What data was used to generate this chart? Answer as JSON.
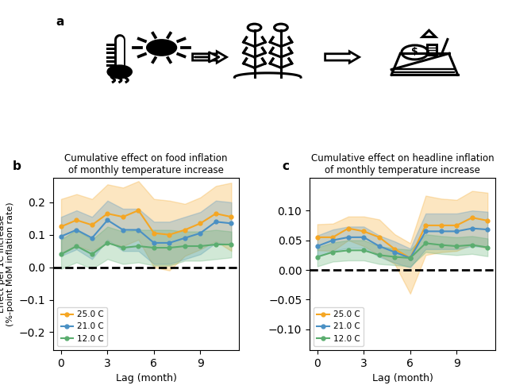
{
  "panel_b_title": "Cumulative effect on food inflation\nof monthly temperature increase",
  "panel_c_title": "Cumulative effect on headline inflation\nof monthly temperature increase",
  "xlabel": "Lag (month)",
  "ylabel": "Effect per 1C increase\n(%-point MoM inflation rate)",
  "lags": [
    0,
    1,
    2,
    3,
    4,
    5,
    6,
    7,
    8,
    9,
    10,
    11
  ],
  "food": {
    "orange_mean": [
      0.125,
      0.145,
      0.13,
      0.165,
      0.155,
      0.175,
      0.105,
      0.1,
      0.115,
      0.135,
      0.165,
      0.155
    ],
    "orange_upper": [
      0.21,
      0.225,
      0.21,
      0.255,
      0.245,
      0.265,
      0.21,
      0.205,
      0.195,
      0.215,
      0.25,
      0.26
    ],
    "orange_lower": [
      0.04,
      0.065,
      0.05,
      0.075,
      0.065,
      0.085,
      0.0,
      -0.01,
      0.035,
      0.055,
      0.08,
      0.05
    ],
    "blue_mean": [
      0.095,
      0.115,
      0.09,
      0.145,
      0.115,
      0.115,
      0.075,
      0.075,
      0.09,
      0.105,
      0.14,
      0.135
    ],
    "blue_upper": [
      0.155,
      0.175,
      0.155,
      0.205,
      0.18,
      0.18,
      0.14,
      0.14,
      0.155,
      0.17,
      0.205,
      0.2
    ],
    "blue_lower": [
      0.035,
      0.055,
      0.025,
      0.085,
      0.05,
      0.05,
      0.01,
      0.01,
      0.025,
      0.04,
      0.075,
      0.07
    ],
    "green_mean": [
      0.04,
      0.065,
      0.04,
      0.075,
      0.06,
      0.065,
      0.06,
      0.06,
      0.065,
      0.065,
      0.07,
      0.07
    ],
    "green_upper": [
      0.085,
      0.115,
      0.085,
      0.125,
      0.11,
      0.115,
      0.115,
      0.115,
      0.11,
      0.11,
      0.115,
      0.11
    ],
    "green_lower": [
      -0.005,
      0.015,
      -0.005,
      0.025,
      0.01,
      0.015,
      0.005,
      0.005,
      0.02,
      0.02,
      0.025,
      0.03
    ]
  },
  "headline": {
    "orange_mean": [
      0.055,
      0.055,
      0.07,
      0.065,
      0.055,
      0.035,
      0.02,
      0.075,
      0.075,
      0.075,
      0.088,
      0.083
    ],
    "orange_upper": [
      0.077,
      0.078,
      0.09,
      0.09,
      0.085,
      0.06,
      0.045,
      0.125,
      0.12,
      0.118,
      0.133,
      0.13
    ],
    "orange_lower": [
      0.033,
      0.032,
      0.05,
      0.04,
      0.025,
      0.01,
      -0.04,
      0.025,
      0.03,
      0.032,
      0.043,
      0.036
    ],
    "blue_mean": [
      0.04,
      0.05,
      0.055,
      0.055,
      0.04,
      0.03,
      0.02,
      0.065,
      0.065,
      0.065,
      0.07,
      0.068
    ],
    "blue_upper": [
      0.058,
      0.068,
      0.073,
      0.073,
      0.058,
      0.048,
      0.036,
      0.095,
      0.095,
      0.095,
      0.1,
      0.098
    ],
    "blue_lower": [
      0.022,
      0.032,
      0.037,
      0.037,
      0.022,
      0.012,
      0.004,
      0.035,
      0.035,
      0.035,
      0.04,
      0.038
    ],
    "green_mean": [
      0.022,
      0.03,
      0.033,
      0.033,
      0.025,
      0.022,
      0.02,
      0.045,
      0.042,
      0.04,
      0.042,
      0.038
    ],
    "green_upper": [
      0.038,
      0.046,
      0.05,
      0.05,
      0.04,
      0.036,
      0.034,
      0.06,
      0.057,
      0.055,
      0.057,
      0.053
    ],
    "green_lower": [
      0.006,
      0.014,
      0.016,
      0.016,
      0.01,
      0.008,
      0.006,
      0.03,
      0.027,
      0.025,
      0.027,
      0.023
    ]
  },
  "orange_color": "#F5A623",
  "blue_color": "#4A90C4",
  "green_color": "#5BAD6F",
  "food_ylim": [
    -0.255,
    0.275
  ],
  "headline_ylim": [
    -0.135,
    0.155
  ],
  "xticks": [
    0,
    3,
    6,
    9
  ],
  "food_yticks": [
    -0.2,
    -0.1,
    0.0,
    0.1,
    0.2
  ],
  "headline_yticks": [
    -0.1,
    -0.05,
    0.0,
    0.05,
    0.1
  ],
  "fill_alpha": 0.28,
  "markersize": 3.5
}
